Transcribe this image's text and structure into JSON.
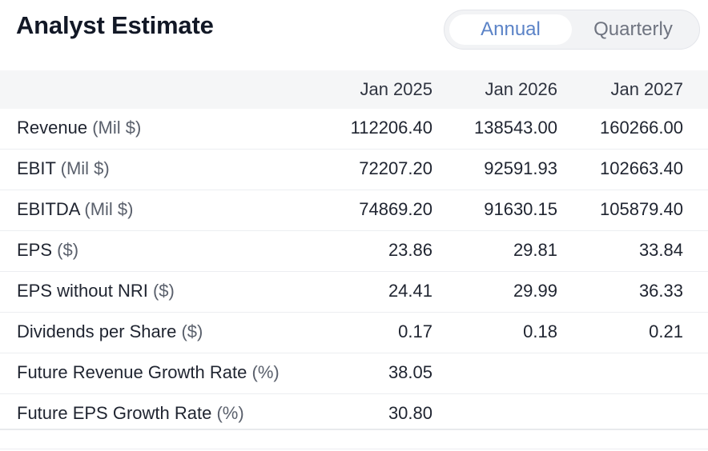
{
  "header": {
    "title": "Analyst Estimate"
  },
  "period_toggle": {
    "options": [
      "Annual",
      "Quarterly"
    ],
    "selected": "Annual"
  },
  "table": {
    "columns": [
      "Jan 2025",
      "Jan 2026",
      "Jan 2027"
    ],
    "rows": [
      {
        "label": "Revenue",
        "unit": "(Mil $)",
        "values": [
          "112206.40",
          "138543.00",
          "160266.00"
        ]
      },
      {
        "label": "EBIT",
        "unit": "(Mil $)",
        "values": [
          "72207.20",
          "92591.93",
          "102663.40"
        ]
      },
      {
        "label": "EBITDA",
        "unit": "(Mil $)",
        "values": [
          "74869.20",
          "91630.15",
          "105879.40"
        ]
      },
      {
        "label": "EPS",
        "unit": "($)",
        "values": [
          "23.86",
          "29.81",
          "33.84"
        ]
      },
      {
        "label": "EPS without NRI",
        "unit": "($)",
        "values": [
          "24.41",
          "29.99",
          "36.33"
        ]
      },
      {
        "label": "Dividends per Share",
        "unit": "($)",
        "values": [
          "0.17",
          "0.18",
          "0.21"
        ]
      },
      {
        "label": "Future Revenue Growth Rate",
        "unit": "(%)",
        "values": [
          "38.05",
          "",
          ""
        ]
      },
      {
        "label": "Future EPS Growth Rate",
        "unit": "(%)",
        "values": [
          "30.80",
          "",
          ""
        ]
      }
    ]
  }
}
